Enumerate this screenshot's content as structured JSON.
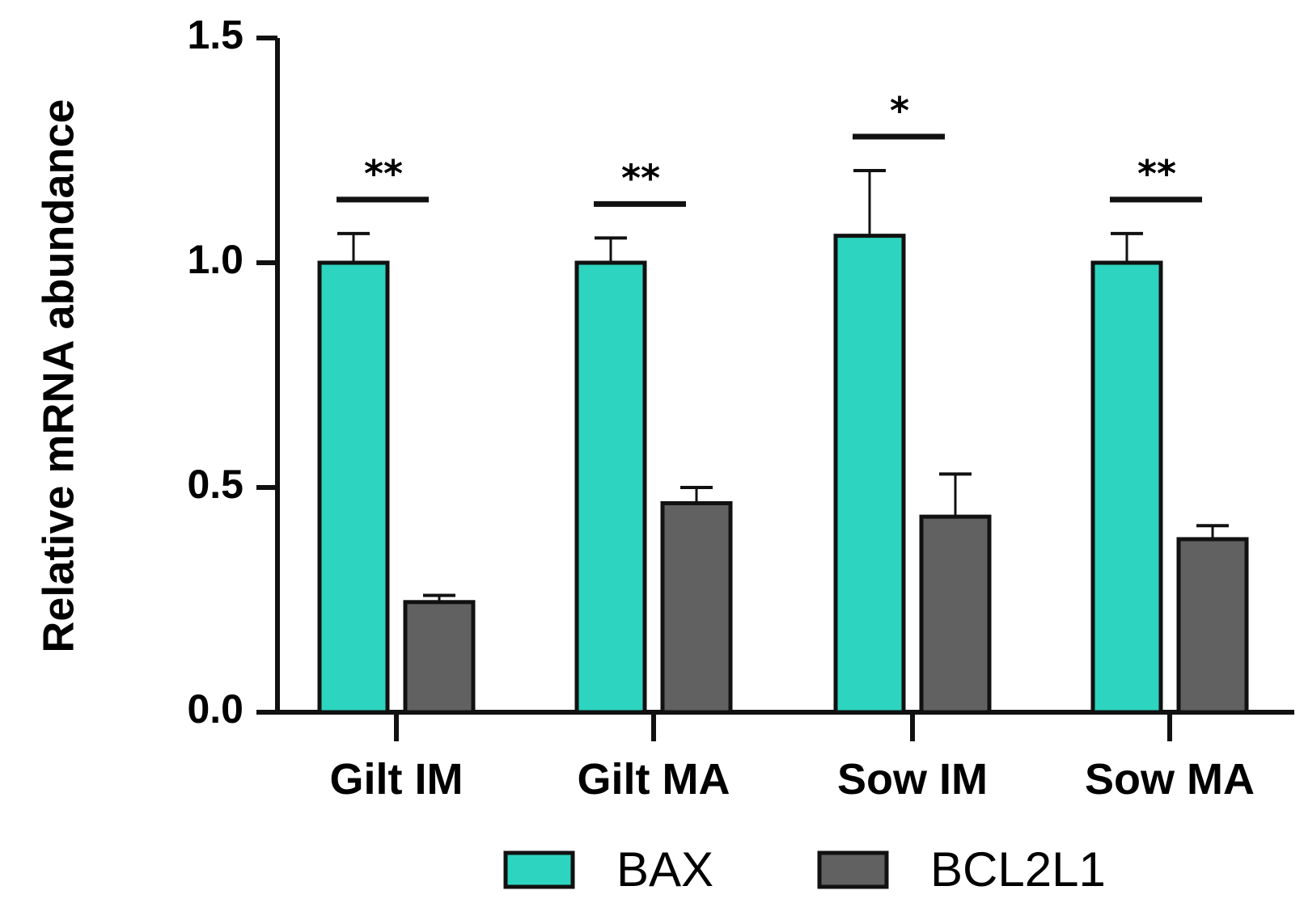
{
  "chart_data": {
    "type": "bar",
    "title": "",
    "xlabel": "",
    "ylabel": "Relative mRNA abundance",
    "ylim": [
      0,
      1.5
    ],
    "yticks": [
      {
        "value": 0.0,
        "label": "0.0"
      },
      {
        "value": 0.5,
        "label": "0.5"
      },
      {
        "value": 1.0,
        "label": "1.0"
      },
      {
        "value": 1.5,
        "label": "1.5"
      }
    ],
    "categories": [
      "Gilt IM",
      "Gilt MA",
      "Sow IM",
      "Sow MA"
    ],
    "series": [
      {
        "name": "BAX",
        "color": "#2dd4bf",
        "values": [
          1.0,
          1.0,
          1.06,
          1.0
        ],
        "errors": [
          0.065,
          0.055,
          0.145,
          0.065
        ]
      },
      {
        "name": "BCL2L1",
        "color": "#616161",
        "values": [
          0.245,
          0.465,
          0.435,
          0.385
        ],
        "errors": [
          0.015,
          0.035,
          0.095,
          0.03
        ]
      }
    ],
    "significance": [
      "**",
      "**",
      "*",
      "**"
    ],
    "legend_position": "bottom"
  }
}
